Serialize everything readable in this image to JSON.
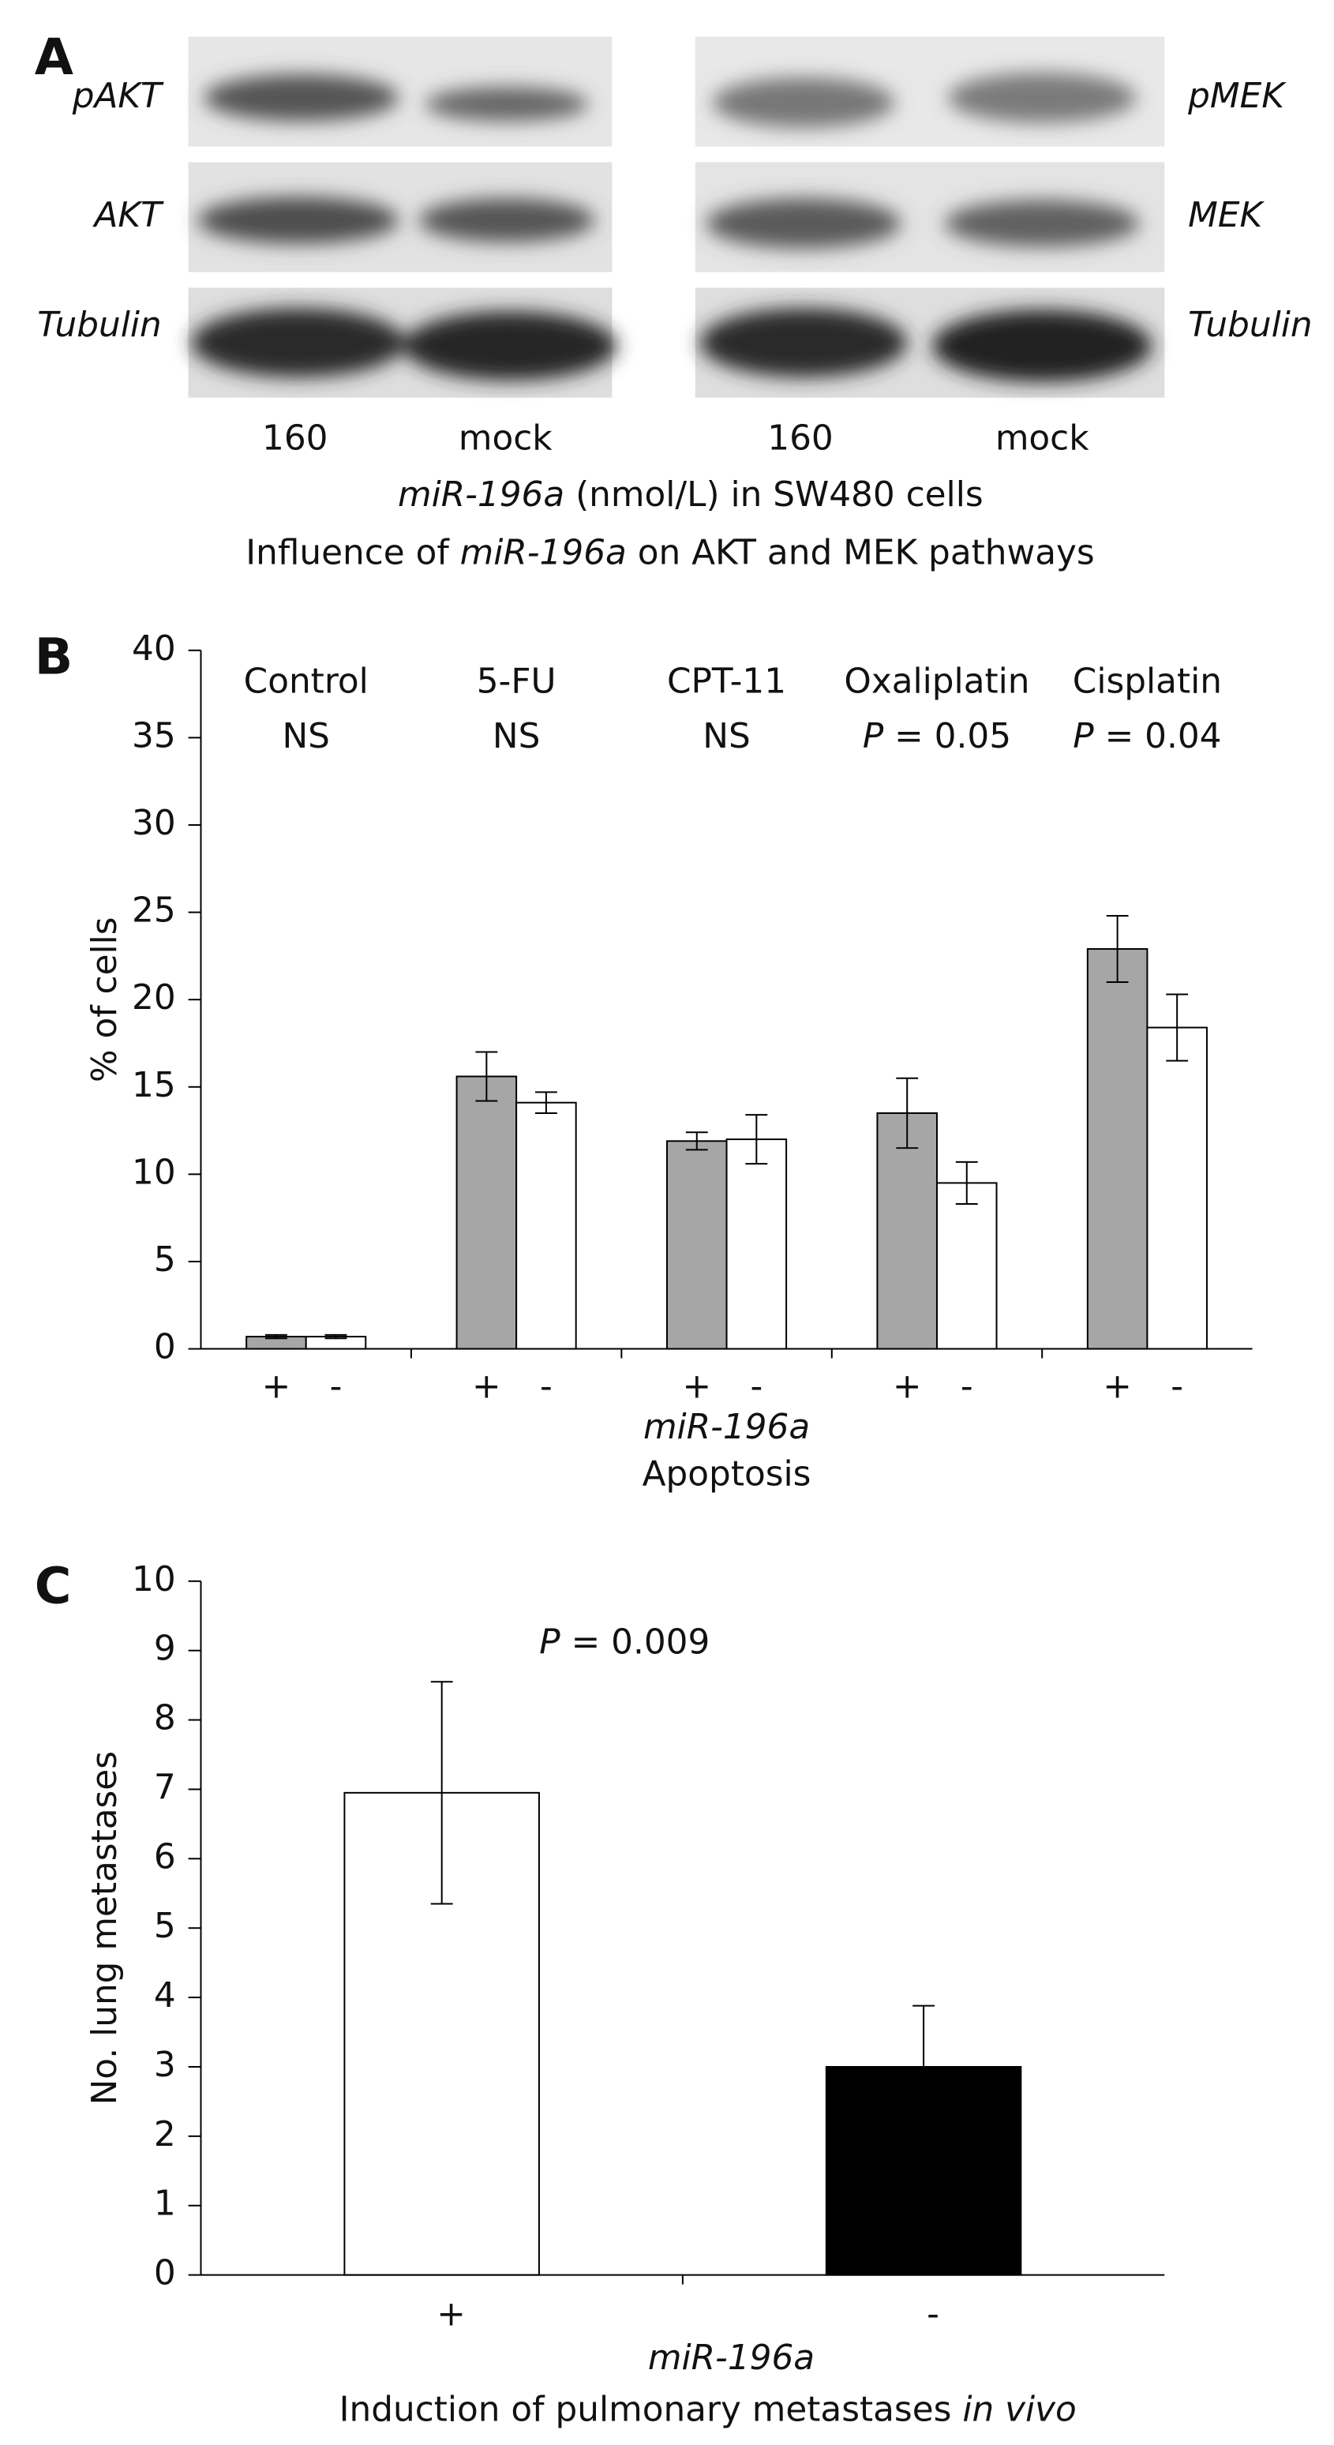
{
  "panel_letters": [
    "A",
    "B",
    "C"
  ],
  "panel_a": {
    "left_labels": [
      "pAKT",
      "AKT",
      "Tubulin"
    ],
    "right_labels": [
      "pMEK",
      "MEK",
      "Tubulin"
    ],
    "lane_labels": [
      "160",
      "mock",
      "160",
      "mock"
    ],
    "caption": [
      "miR-196a",
      " (nmol/L) in SW480 cells"
    ],
    "title": [
      "Influence of ",
      "miR-196a",
      " on AKT and MEK pathways"
    ]
  },
  "chart_data": [
    {
      "type": "bar",
      "categories": [
        "Control",
        "5-FU",
        "CPT-11",
        "Oxaliplatin",
        "Cisplatin"
      ],
      "annotations": [
        "NS",
        "NS",
        "NS",
        {
          "italic": "P",
          "text": " = 0.05"
        },
        {
          "italic": "P",
          "text": " = 0.04"
        }
      ],
      "series": [
        {
          "name": "+",
          "color": "#a6a6a6",
          "values": [
            0.7,
            15.6,
            11.9,
            13.5,
            22.9
          ],
          "errors": [
            0.1,
            1.4,
            0.5,
            2.0,
            1.9
          ]
        },
        {
          "name": "-",
          "color": "#ffffff",
          "values": [
            0.7,
            14.1,
            12.0,
            9.5,
            18.4
          ],
          "errors": [
            0.1,
            0.6,
            1.4,
            1.2,
            1.9
          ]
        }
      ],
      "xlabel": [
        "miR-196a",
        "Apoptosis"
      ],
      "ylabel": "% of cells",
      "ylim": [
        0,
        40
      ],
      "yticks": [
        0,
        5,
        10,
        15,
        20,
        25,
        30,
        35,
        40
      ]
    },
    {
      "type": "bar",
      "categories": [
        "+",
        "-"
      ],
      "colors": [
        "#ffffff",
        "#000000"
      ],
      "values": [
        6.95,
        3.0
      ],
      "errors": [
        1.6,
        0.88
      ],
      "annotation": {
        "italic": "P",
        "text": " = 0.009"
      },
      "xlabel": [
        "miR-196a",
        "Induction of pulmonary metastases ",
        "in vivo"
      ],
      "ylabel": "No. lung metastases",
      "ylim": [
        0,
        10
      ],
      "yticks": [
        0,
        1,
        2,
        3,
        4,
        5,
        6,
        7,
        8,
        9,
        10
      ]
    }
  ]
}
